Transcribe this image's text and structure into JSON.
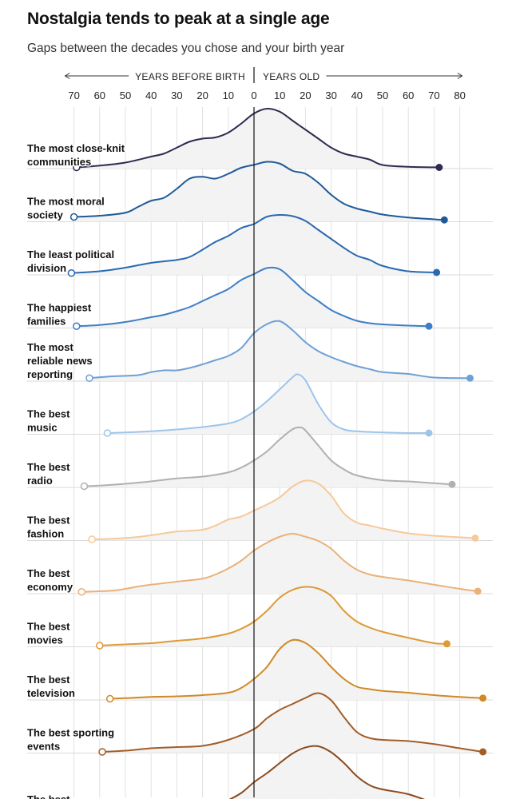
{
  "title": "Nostalgia tends to peak at a single age",
  "subtitle": "Gaps between the decades you chose and your birth year",
  "colors": {
    "grid": "#e2e2e2",
    "baseline": "#d9d9d9",
    "fill": "#f2f2f2",
    "zero": "#111111"
  },
  "chart_data": {
    "type": "area",
    "subtype": "ridgeline",
    "xlim": [
      -72,
      90
    ],
    "x_ticks": [
      -70,
      -60,
      -50,
      -40,
      -30,
      -20,
      -10,
      0,
      10,
      20,
      30,
      40,
      50,
      60,
      70,
      80
    ],
    "x_tick_labels": [
      "70",
      "60",
      "50",
      "40",
      "30",
      "20",
      "10",
      "0",
      "10",
      "20",
      "30",
      "40",
      "50",
      "60",
      "70",
      "80"
    ],
    "left_axis_label": "YEARS BEFORE BIRTH",
    "right_axis_label": "YEARS OLD",
    "series": [
      {
        "name": "The most close-knit communities",
        "label_lines": [
          "The most close-knit",
          "communities"
        ],
        "color": "#2f2b4f",
        "start": -69,
        "end": 72,
        "x": [
          -69,
          -60,
          -50,
          -40,
          -35,
          -30,
          -25,
          -20,
          -15,
          -10,
          -5,
          0,
          5,
          10,
          15,
          20,
          25,
          30,
          35,
          40,
          45,
          50,
          60,
          72
        ],
        "y": [
          0.02,
          0.05,
          0.1,
          0.2,
          0.25,
          0.35,
          0.45,
          0.5,
          0.52,
          0.6,
          0.75,
          0.92,
          1.0,
          0.95,
          0.8,
          0.65,
          0.5,
          0.35,
          0.25,
          0.2,
          0.15,
          0.06,
          0.03,
          0.02
        ]
      },
      {
        "name": "The most moral society",
        "label_lines": [
          "The most moral",
          "society"
        ],
        "color": "#1f5a98",
        "start": -70,
        "end": 74,
        "x": [
          -70,
          -60,
          -50,
          -45,
          -40,
          -35,
          -30,
          -25,
          -20,
          -15,
          -10,
          -5,
          0,
          5,
          10,
          15,
          20,
          25,
          30,
          35,
          40,
          45,
          50,
          60,
          74
        ],
        "y": [
          0.08,
          0.1,
          0.15,
          0.25,
          0.35,
          0.4,
          0.55,
          0.72,
          0.75,
          0.72,
          0.8,
          0.9,
          0.95,
          1.0,
          0.97,
          0.85,
          0.8,
          0.65,
          0.45,
          0.3,
          0.22,
          0.17,
          0.12,
          0.07,
          0.03
        ]
      },
      {
        "name": "The least political division",
        "label_lines": [
          "The least political",
          "division"
        ],
        "color": "#2a69b0",
        "start": -71,
        "end": 71,
        "x": [
          -71,
          -60,
          -50,
          -40,
          -30,
          -25,
          -20,
          -15,
          -10,
          -5,
          0,
          5,
          10,
          15,
          20,
          25,
          30,
          35,
          40,
          45,
          50,
          60,
          71
        ],
        "y": [
          0.03,
          0.06,
          0.12,
          0.2,
          0.25,
          0.3,
          0.42,
          0.55,
          0.65,
          0.78,
          0.85,
          0.97,
          1.0,
          0.98,
          0.9,
          0.75,
          0.6,
          0.45,
          0.32,
          0.25,
          0.15,
          0.06,
          0.04
        ]
      },
      {
        "name": "The happiest families",
        "label_lines": [
          "The happiest",
          "families"
        ],
        "color": "#3e7ec4",
        "start": -69,
        "end": 68,
        "x": [
          -69,
          -60,
          -50,
          -40,
          -35,
          -30,
          -25,
          -20,
          -15,
          -10,
          -5,
          0,
          5,
          10,
          15,
          20,
          25,
          30,
          35,
          40,
          45,
          50,
          60,
          68
        ],
        "y": [
          0.03,
          0.05,
          0.1,
          0.18,
          0.22,
          0.28,
          0.35,
          0.45,
          0.55,
          0.65,
          0.8,
          0.9,
          1.0,
          0.98,
          0.8,
          0.6,
          0.45,
          0.3,
          0.2,
          0.12,
          0.08,
          0.06,
          0.04,
          0.03
        ]
      },
      {
        "name": "The most reliable news reporting",
        "label_lines": [
          "The most",
          "reliable news",
          "reporting"
        ],
        "color": "#6e9fd6",
        "start": -64,
        "end": 84,
        "x": [
          -64,
          -55,
          -45,
          -40,
          -35,
          -30,
          -25,
          -20,
          -15,
          -10,
          -5,
          0,
          5,
          10,
          15,
          20,
          25,
          30,
          35,
          40,
          45,
          50,
          60,
          70,
          84
        ],
        "y": [
          0.05,
          0.08,
          0.1,
          0.15,
          0.18,
          0.18,
          0.22,
          0.28,
          0.35,
          0.42,
          0.55,
          0.8,
          0.95,
          1.0,
          0.85,
          0.65,
          0.5,
          0.4,
          0.32,
          0.25,
          0.2,
          0.15,
          0.12,
          0.06,
          0.05
        ]
      },
      {
        "name": "The best music",
        "label_lines": [
          "The best",
          "music"
        ],
        "color": "#9dc5ec",
        "start": -57,
        "end": 68,
        "x": [
          -57,
          -50,
          -40,
          -30,
          -20,
          -10,
          -5,
          0,
          5,
          10,
          15,
          17,
          20,
          25,
          30,
          35,
          40,
          50,
          60,
          68
        ],
        "y": [
          0.02,
          0.03,
          0.05,
          0.08,
          0.12,
          0.18,
          0.25,
          0.38,
          0.55,
          0.75,
          0.95,
          1.0,
          0.9,
          0.5,
          0.2,
          0.08,
          0.05,
          0.03,
          0.02,
          0.02
        ]
      },
      {
        "name": "The best radio",
        "label_lines": [
          "The best",
          "radio"
        ],
        "color": "#b0b0b0",
        "start": -66,
        "end": 77,
        "x": [
          -66,
          -60,
          -50,
          -40,
          -30,
          -20,
          -10,
          -5,
          0,
          5,
          10,
          15,
          18,
          20,
          25,
          30,
          35,
          40,
          50,
          60,
          70,
          77
        ],
        "y": [
          0.02,
          0.03,
          0.06,
          0.1,
          0.15,
          0.18,
          0.25,
          0.33,
          0.45,
          0.6,
          0.8,
          0.97,
          1.0,
          0.95,
          0.7,
          0.45,
          0.3,
          0.2,
          0.12,
          0.1,
          0.07,
          0.05
        ]
      },
      {
        "name": "The best fashion",
        "label_lines": [
          "The best",
          "fashion"
        ],
        "color": "#f6c99b",
        "start": -63,
        "end": 86,
        "x": [
          -63,
          -55,
          -45,
          -35,
          -30,
          -20,
          -15,
          -10,
          -5,
          0,
          5,
          10,
          15,
          20,
          25,
          30,
          35,
          40,
          45,
          50,
          60,
          70,
          86
        ],
        "y": [
          0.02,
          0.03,
          0.06,
          0.12,
          0.15,
          0.18,
          0.25,
          0.35,
          0.4,
          0.5,
          0.6,
          0.72,
          0.9,
          1.0,
          0.95,
          0.75,
          0.45,
          0.3,
          0.25,
          0.2,
          0.12,
          0.08,
          0.04
        ]
      },
      {
        "name": "The best economy",
        "label_lines": [
          "The best",
          "economy"
        ],
        "color": "#eab17a",
        "start": -67,
        "end": 87,
        "x": [
          -67,
          -55,
          -50,
          -45,
          -40,
          -30,
          -20,
          -15,
          -10,
          -5,
          0,
          5,
          10,
          15,
          20,
          25,
          30,
          35,
          40,
          45,
          50,
          60,
          70,
          80,
          87
        ],
        "y": [
          0.03,
          0.05,
          0.08,
          0.12,
          0.15,
          0.2,
          0.25,
          0.32,
          0.42,
          0.55,
          0.72,
          0.85,
          0.95,
          1.0,
          0.95,
          0.88,
          0.75,
          0.55,
          0.4,
          0.32,
          0.28,
          0.22,
          0.15,
          0.08,
          0.04
        ]
      },
      {
        "name": "The best movies",
        "label_lines": [
          "The best",
          "movies"
        ],
        "color": "#dd9a35",
        "start": -60,
        "end": 75,
        "x": [
          -60,
          -50,
          -40,
          -35,
          -30,
          -20,
          -10,
          -5,
          0,
          5,
          10,
          15,
          20,
          25,
          30,
          35,
          40,
          45,
          50,
          60,
          70,
          75
        ],
        "y": [
          0.02,
          0.04,
          0.06,
          0.08,
          0.1,
          0.14,
          0.22,
          0.3,
          0.42,
          0.6,
          0.82,
          0.95,
          1.0,
          0.97,
          0.85,
          0.6,
          0.42,
          0.32,
          0.25,
          0.15,
          0.06,
          0.05
        ]
      },
      {
        "name": "The best television",
        "label_lines": [
          "The best",
          "television"
        ],
        "color": "#cf8a26",
        "start": -56,
        "end": 89,
        "x": [
          -56,
          -50,
          -40,
          -30,
          -20,
          -10,
          -5,
          0,
          5,
          10,
          15,
          20,
          25,
          30,
          35,
          40,
          45,
          50,
          60,
          70,
          80,
          89
        ],
        "y": [
          0.02,
          0.03,
          0.05,
          0.06,
          0.08,
          0.12,
          0.2,
          0.35,
          0.55,
          0.85,
          1.0,
          0.95,
          0.78,
          0.55,
          0.35,
          0.22,
          0.18,
          0.15,
          0.12,
          0.08,
          0.05,
          0.03
        ]
      },
      {
        "name": "The best sporting events",
        "label_lines": [
          "The best sporting",
          "events"
        ],
        "color": "#a25d28",
        "start": -59,
        "end": 89,
        "x": [
          -59,
          -50,
          -40,
          -30,
          -20,
          -10,
          0,
          5,
          10,
          15,
          20,
          25,
          30,
          35,
          40,
          45,
          50,
          60,
          70,
          80,
          89
        ],
        "y": [
          0.02,
          0.04,
          0.08,
          0.1,
          0.12,
          0.22,
          0.4,
          0.58,
          0.72,
          0.82,
          0.92,
          1.0,
          0.88,
          0.6,
          0.35,
          0.25,
          0.22,
          0.2,
          0.15,
          0.08,
          0.02
        ]
      },
      {
        "name": "The best",
        "label_lines": [
          "The best"
        ],
        "color": "#8a4a20",
        "start": -15,
        "end": 73,
        "x": [
          -15,
          -10,
          -5,
          0,
          5,
          10,
          15,
          20,
          25,
          30,
          35,
          40,
          45,
          50,
          60,
          70,
          73
        ],
        "y": [
          0.0,
          0.1,
          0.22,
          0.4,
          0.55,
          0.72,
          0.88,
          0.98,
          1.0,
          0.9,
          0.72,
          0.5,
          0.35,
          0.28,
          0.2,
          0.05,
          0.0
        ]
      }
    ]
  }
}
